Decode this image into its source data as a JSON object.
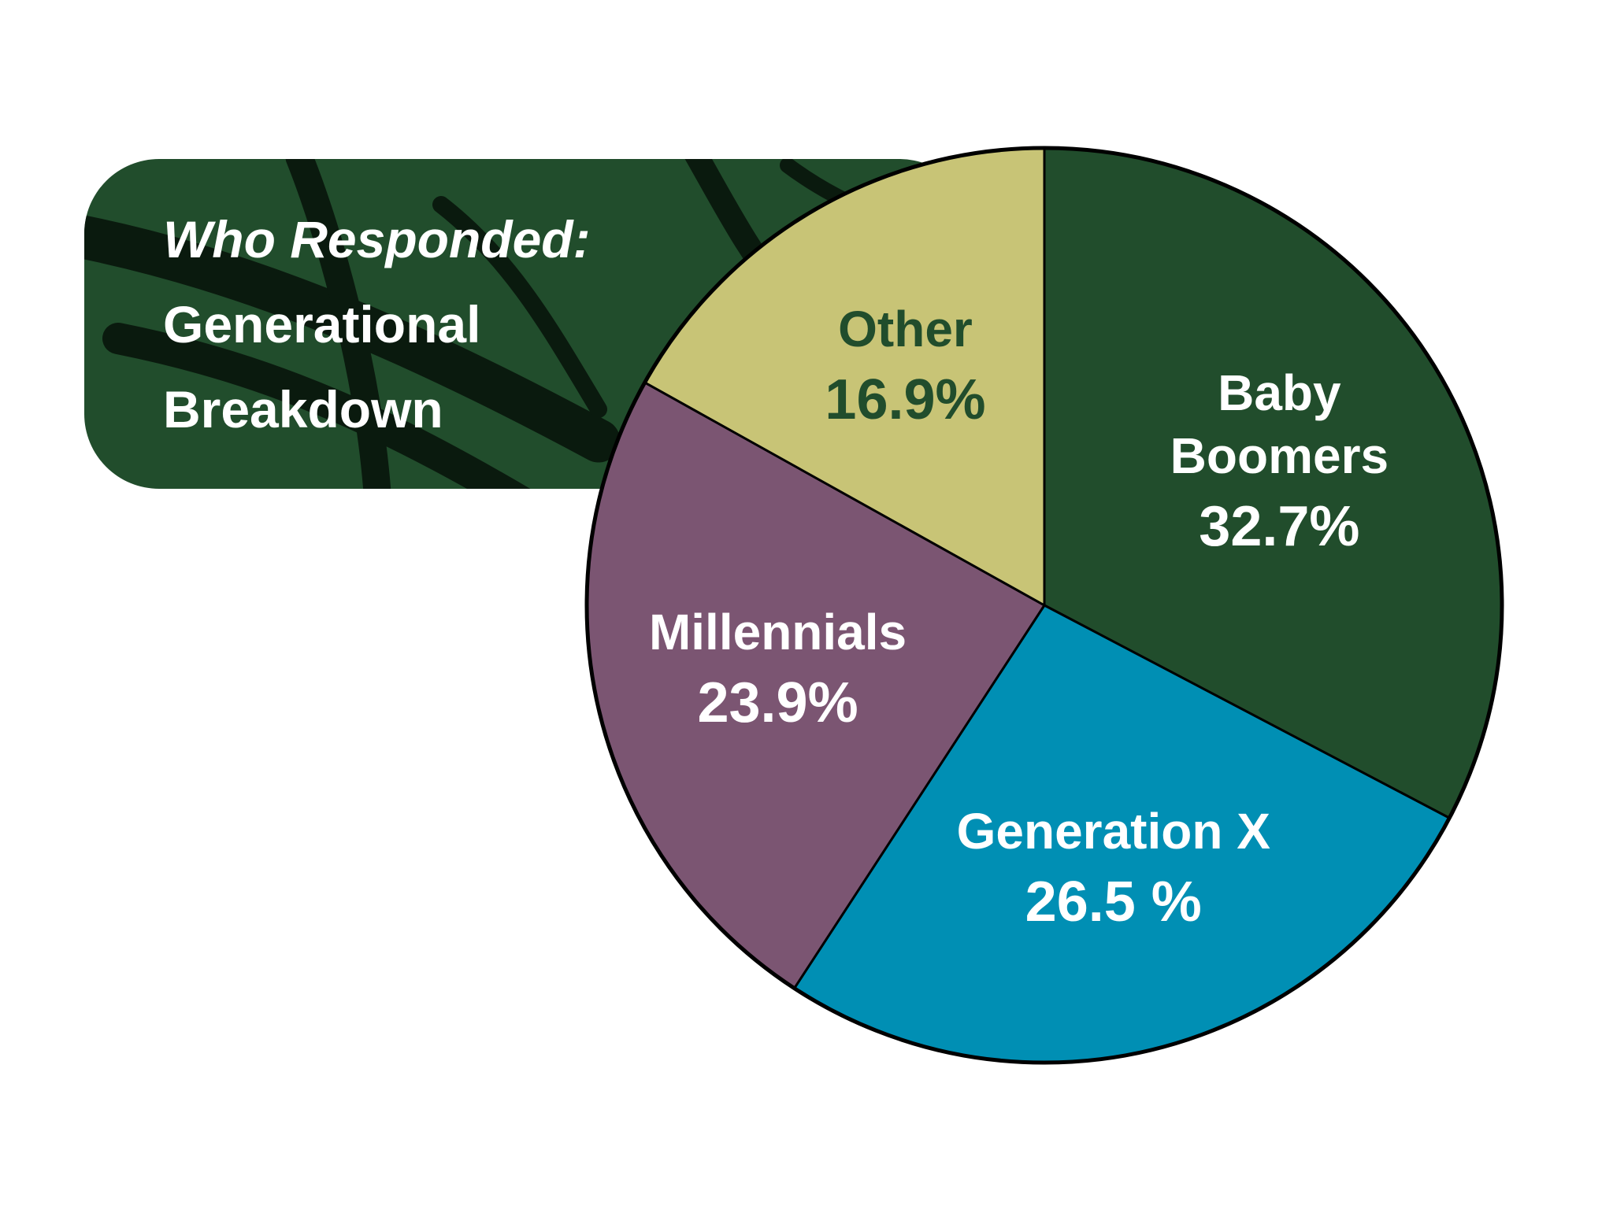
{
  "chart_data": {
    "type": "pie",
    "title": "Who Responded:",
    "subtitle": "Generational Breakdown",
    "categories": [
      "Baby Boomers",
      "Generation X",
      "Millennials",
      "Other"
    ],
    "values": [
      32.7,
      26.5,
      23.9,
      16.9
    ],
    "value_labels": [
      "32.7%",
      "26.5 %",
      "23.9%",
      "16.9%"
    ],
    "colors": [
      "#214d2c",
      "#008fb4",
      "#7b5572",
      "#c8c476"
    ],
    "label_colors": [
      "#ffffff",
      "#ffffff",
      "#ffffff",
      "#214d2c"
    ]
  }
}
